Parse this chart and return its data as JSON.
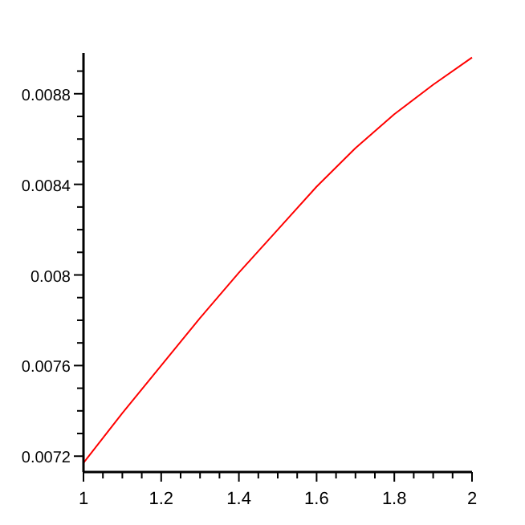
{
  "chart_data": {
    "type": "line",
    "x": [
      1,
      1.1,
      1.2,
      1.3,
      1.4,
      1.5,
      1.6,
      1.7,
      1.8,
      1.9,
      2
    ],
    "series": [
      {
        "color": "#ff0000",
        "values": [
          0.00717,
          0.00739,
          0.0076,
          0.00781,
          0.00801,
          0.0082,
          0.00839,
          0.00856,
          0.00871,
          0.00884,
          0.00896
        ]
      }
    ],
    "xlim": [
      1,
      2
    ],
    "ylim": [
      0.00713,
      0.00898
    ],
    "xticks": [
      1,
      {
        "value": 1.05,
        "label": null
      },
      {
        "value": 1.1,
        "label": null
      },
      {
        "value": 1.15,
        "label": null
      },
      1.2,
      {
        "value": 1.25,
        "label": null
      },
      {
        "value": 1.3,
        "label": null
      },
      {
        "value": 1.35,
        "label": null
      },
      1.4,
      {
        "value": 1.45,
        "label": null
      },
      {
        "value": 1.5,
        "label": null
      },
      {
        "value": 1.55,
        "label": null
      },
      1.6,
      {
        "value": 1.65,
        "label": null
      },
      {
        "value": 1.7,
        "label": null
      },
      {
        "value": 1.75,
        "label": null
      },
      1.8,
      {
        "value": 1.85,
        "label": null
      },
      {
        "value": 1.9,
        "label": null
      },
      {
        "value": 1.95,
        "label": null
      },
      2
    ],
    "yticks": [
      0.0072,
      {
        "value": 0.0073,
        "label": null
      },
      {
        "value": 0.0074,
        "label": null
      },
      {
        "value": 0.0075,
        "label": null
      },
      0.0076,
      {
        "value": 0.0077,
        "label": null
      },
      {
        "value": 0.0078,
        "label": null
      },
      {
        "value": 0.0079,
        "label": null
      },
      0.008,
      {
        "value": 0.0081,
        "label": null
      },
      {
        "value": 0.0082,
        "label": null
      },
      {
        "value": 0.0083,
        "label": null
      },
      0.0084,
      {
        "value": 0.0085,
        "label": null
      },
      {
        "value": 0.0086,
        "label": null
      },
      {
        "value": 0.0087,
        "label": null
      },
      0.0088,
      {
        "value": 0.0089,
        "label": null
      }
    ],
    "grid": false,
    "marker": "none",
    "line_style": "solid"
  }
}
